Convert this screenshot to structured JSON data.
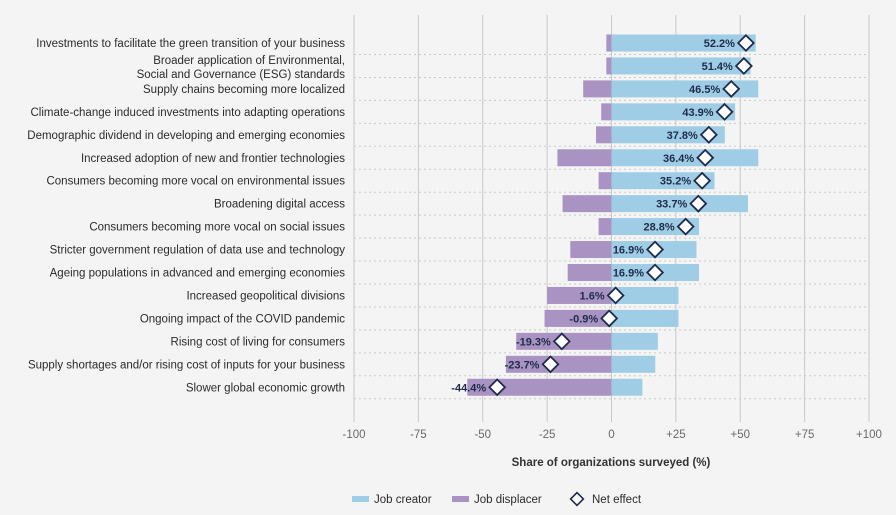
{
  "chart_data": {
    "type": "bar",
    "orientation": "horizontal",
    "stacked": "diverging",
    "xlabel": "Share of organizations surveyed (%)",
    "xlim": [
      -100,
      100
    ],
    "xticks": [
      "-100",
      "-75",
      "-50",
      "-25",
      "0",
      "+25",
      "+50",
      "+75",
      "+100"
    ],
    "xtick_values": [
      -100,
      -75,
      -50,
      -25,
      0,
      25,
      50,
      75,
      100
    ],
    "grid": "vertical-dashed",
    "legend_position": "bottom-center",
    "categories": [
      [
        "Investments to facilitate the green transition of your business"
      ],
      [
        "Broader application of Environmental,",
        "Social and Governance (ESG) standards"
      ],
      [
        "Supply chains becoming more localized"
      ],
      [
        "Climate-change induced investments into adapting operations"
      ],
      [
        "Demographic dividend in developing and emerging economies"
      ],
      [
        "Increased adoption of new and frontier technologies"
      ],
      [
        "Consumers becoming more vocal on environmental issues"
      ],
      [
        "Broadening digital access"
      ],
      [
        "Consumers becoming more vocal on social issues"
      ],
      [
        "Stricter government regulation of data use and technology"
      ],
      [
        "Ageing populations in advanced and emerging economies"
      ],
      [
        "Increased geopolitical divisions"
      ],
      [
        "Ongoing impact of the COVID pandemic"
      ],
      [
        "Rising cost of living for consumers"
      ],
      [
        "Supply shortages and/or rising cost of inputs for your business"
      ],
      [
        "Slower global economic growth"
      ]
    ],
    "series": [
      {
        "name": "Job creator",
        "color": "#9fcde5",
        "values": [
          56,
          54,
          57,
          48,
          44,
          57,
          40,
          53,
          34,
          33,
          34,
          26,
          26,
          18,
          17,
          12
        ]
      },
      {
        "name": "Job displacer",
        "color": "#a993c2",
        "values": [
          -2,
          -2,
          -11,
          -4,
          -6,
          -21,
          -5,
          -19,
          -5,
          -16,
          -17,
          -25,
          -26,
          -37,
          -41,
          -56
        ]
      },
      {
        "name": "Net effect",
        "color": "#1e2b4a",
        "values": [
          52.2,
          51.4,
          46.5,
          43.9,
          37.8,
          36.4,
          35.2,
          33.7,
          28.8,
          16.9,
          16.9,
          1.6,
          -0.9,
          -19.3,
          -23.7,
          -44.4
        ]
      }
    ],
    "net_labels": [
      "52.2%",
      "51.4%",
      "46.5%",
      "43.9%",
      "37.8%",
      "36.4%",
      "35.2%",
      "33.7%",
      "28.8%",
      "16.9%",
      "16.9%",
      "1.6%",
      "-0.9%",
      "-19.3%",
      "-23.7%",
      "-44.4%"
    ]
  }
}
